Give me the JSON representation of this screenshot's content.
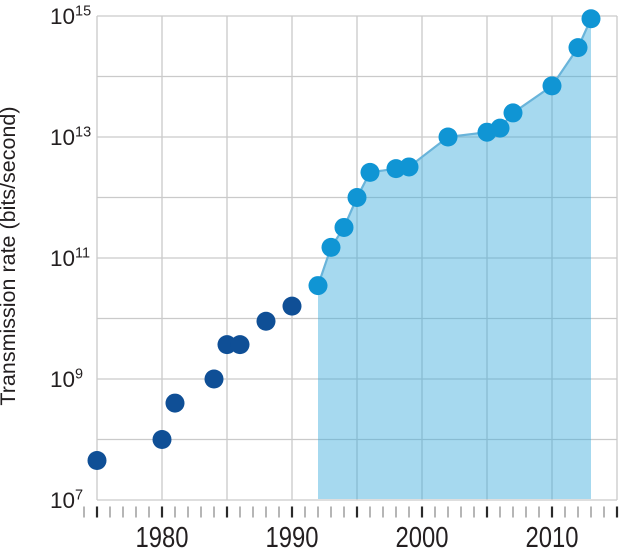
{
  "chart_data": {
    "type": "scatter",
    "title": "",
    "xlabel": "",
    "ylabel": "Transmission rate (bits/second)",
    "y_scale": "log10",
    "y_unit": "bits/second",
    "ylim": [
      10000000.0,
      1000000000000000.0
    ],
    "xlim": [
      1975,
      2015
    ],
    "grid": true,
    "legend": "none",
    "y_axis_labeled_exponents": [
      15,
      13,
      11,
      9,
      7
    ],
    "y_tick_label_base": "10",
    "y_gridline_exponents": [
      7,
      8,
      9,
      10,
      11,
      12,
      13,
      14,
      15
    ],
    "x_gridline_years": [
      1975,
      1980,
      1985,
      1990,
      1995,
      2000,
      2005,
      2010,
      2015
    ],
    "x_tick_first_year": 1974,
    "x_tick_last_year": 2015,
    "x_tick_step_years": 1,
    "x_major_tick_every_years": 5,
    "x_tick_labels": [
      "1980",
      "1990",
      "2000",
      "2010"
    ],
    "x_tick_label_years": [
      1980,
      1990,
      2000,
      2010
    ],
    "series": [
      {
        "name": "dark-blue-points",
        "marker": "circle",
        "color": "#0f4f96",
        "points": [
          {
            "year": 1975,
            "bits_per_second": 45000000.0
          },
          {
            "year": 1980,
            "bits_per_second": 100000000.0
          },
          {
            "year": 1981,
            "bits_per_second": 400000000.0
          },
          {
            "year": 1984,
            "bits_per_second": 1000000000.0
          },
          {
            "year": 1985,
            "bits_per_second": 3700000000.0
          },
          {
            "year": 1986,
            "bits_per_second": 3700000000.0
          },
          {
            "year": 1988,
            "bits_per_second": 9000000000.0
          },
          {
            "year": 1990,
            "bits_per_second": 16000000000.0
          }
        ]
      },
      {
        "name": "light-blue-points",
        "marker": "circle",
        "color": "#1095d4",
        "has_area_fill": true,
        "points": [
          {
            "year": 1992,
            "bits_per_second": 35000000000.0
          },
          {
            "year": 1993,
            "bits_per_second": 150000000000.0
          },
          {
            "year": 1994,
            "bits_per_second": 320000000000.0
          },
          {
            "year": 1995,
            "bits_per_second": 1000000000000.0
          },
          {
            "year": 1996,
            "bits_per_second": 2600000000000.0
          },
          {
            "year": 1998,
            "bits_per_second": 3000000000000.0
          },
          {
            "year": 1999,
            "bits_per_second": 3200000000000.0
          },
          {
            "year": 2002,
            "bits_per_second": 10000000000000.0
          },
          {
            "year": 2005,
            "bits_per_second": 12000000000000.0
          },
          {
            "year": 2006,
            "bits_per_second": 14000000000000.0
          },
          {
            "year": 2007,
            "bits_per_second": 25000000000000.0
          },
          {
            "year": 2010,
            "bits_per_second": 70000000000000.0
          },
          {
            "year": 2012,
            "bits_per_second": 300000000000000.0
          },
          {
            "year": 2013,
            "bits_per_second": 900000000000000.0
          }
        ]
      }
    ],
    "area": {
      "under_series": "light-blue-points",
      "fill_color": "#39abdb",
      "fill_opacity": 0.45,
      "edge_color": "#69b4da",
      "baseline": 10000000.0
    }
  },
  "colors": {
    "background": "#ffffff",
    "gridline": "#cacaca",
    "dark_point": "#0f4f96",
    "light_point": "#1095d4",
    "area_fill_composite": "#a6d9ef",
    "major_tick": "#2a2a2a",
    "minor_tick": "#a3a3a3",
    "text": "#231f20"
  }
}
